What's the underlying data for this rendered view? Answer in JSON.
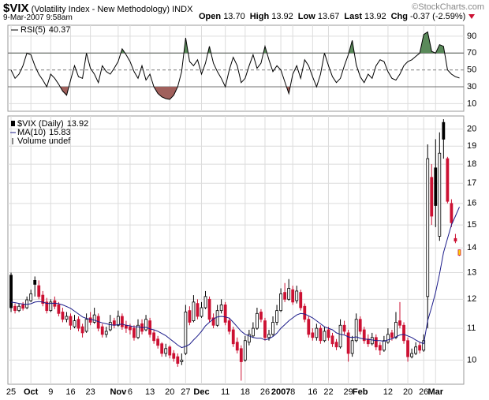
{
  "header": {
    "symbol": "$VIX",
    "name": "(Volatility Index - New Methodology)",
    "exchange": "INDX",
    "timestamp": "9-Mar-2007 9:58am",
    "credit": "©StockCharts.com",
    "quote": [
      {
        "label": "Open",
        "value": "13.70"
      },
      {
        "label": "High",
        "value": "13.92"
      },
      {
        "label": "Low",
        "value": "13.67"
      },
      {
        "label": "Last",
        "value": "13.92"
      },
      {
        "label": "Chg",
        "value": "-0.37 (-2.59%)"
      }
    ]
  },
  "chart_data": [
    {
      "type": "line",
      "ylim": [
        1,
        103
      ],
      "yticks": [
        10,
        30,
        50,
        70,
        90
      ],
      "grid": true,
      "overbought": 70,
      "oversold": 30,
      "midline": 50,
      "overbought_color": "#5a8a5a",
      "oversold_color": "#a0605c",
      "series": [
        {
          "name": "RSI(5)",
          "color": "#000000",
          "values": [
            50,
            40,
            45,
            55,
            70,
            68,
            55,
            45,
            38,
            30,
            45,
            40,
            33,
            25,
            20,
            38,
            55,
            42,
            40,
            70,
            52,
            45,
            35,
            55,
            48,
            45,
            52,
            60,
            75,
            68,
            60,
            48,
            40,
            55,
            38,
            45,
            30,
            22,
            18,
            16,
            15,
            20,
            30,
            48,
            88,
            60,
            55,
            62,
            45,
            58,
            78,
            58,
            48,
            40,
            30,
            50,
            65,
            55,
            35,
            40,
            55,
            68,
            52,
            58,
            78,
            62,
            48,
            55,
            50,
            36,
            22,
            45,
            55,
            40,
            62,
            55,
            42,
            30,
            45,
            70,
            55,
            42,
            35,
            40,
            55,
            68,
            85,
            56,
            42,
            35,
            45,
            40,
            55,
            62,
            60,
            48,
            40,
            38,
            45,
            55,
            60,
            62,
            66,
            70,
            92,
            95,
            72,
            70,
            80,
            78,
            50,
            45,
            42,
            40.37
          ]
        }
      ]
    },
    {
      "type": "candlestick",
      "name": "$VIX (Daily)",
      "log_scale": true,
      "grid": true,
      "up_color": "#000000",
      "down_color": "#cc1133",
      "last_color": "#ffd700",
      "ylim": [
        9.3,
        20.8
      ],
      "yticks": [
        10,
        11,
        12,
        13,
        14,
        15,
        16,
        17,
        18,
        19,
        20
      ],
      "xlim": [
        -0.8,
        114.1
      ],
      "xticks": [
        {
          "value": 0,
          "label": "25"
        },
        {
          "value": 5,
          "label": "Oct"
        },
        {
          "value": 10,
          "label": "9"
        },
        {
          "value": 15,
          "label": "16"
        },
        {
          "value": 20,
          "label": "23"
        },
        {
          "value": 27,
          "label": "Nov"
        },
        {
          "value": 30,
          "label": "6"
        },
        {
          "value": 35,
          "label": "13"
        },
        {
          "value": 40,
          "label": "20"
        },
        {
          "value": 44,
          "label": "27"
        },
        {
          "value": 48,
          "label": "Dec"
        },
        {
          "value": 54,
          "label": "11"
        },
        {
          "value": 59,
          "label": "18"
        },
        {
          "value": 64,
          "label": "26"
        },
        {
          "value": 68,
          "label": "2007"
        },
        {
          "value": 71,
          "label": "8"
        },
        {
          "value": 76,
          "label": "16"
        },
        {
          "value": 80,
          "label": "22"
        },
        {
          "value": 85,
          "label": "29"
        },
        {
          "value": 88,
          "label": "Feb"
        },
        {
          "value": 95,
          "label": "12"
        },
        {
          "value": 100,
          "label": "20"
        },
        {
          "value": 104,
          "label": "26"
        },
        {
          "value": 107,
          "label": "Mar"
        }
      ],
      "open": [
        12.9,
        11.75,
        11.6,
        11.8,
        11.7,
        11.95,
        12.7,
        12.5,
        12.15,
        11.9,
        11.6,
        11.95,
        11.8,
        11.55,
        11.3,
        11.4,
        11.05,
        11.3,
        11.05,
        10.9,
        11.35,
        11.2,
        11.4,
        11.05,
        10.8,
        10.95,
        11.25,
        11.1,
        11.4,
        11.1,
        11.05,
        11.0,
        10.7,
        11.15,
        10.95,
        11.25,
        10.85,
        10.65,
        10.5,
        10.2,
        10.4,
        10.2,
        10.1,
        9.95,
        10.2,
        11.6,
        11.25,
        11.85,
        11.4,
        11.7,
        12.0,
        11.35,
        11.1,
        11.6,
        11.8,
        11.25,
        10.95,
        10.55,
        10.35,
        10.0,
        10.55,
        10.75,
        11.0,
        11.55,
        11.25,
        10.7,
        10.8,
        11.2,
        11.6,
        12.25,
        12.0,
        12.35,
        11.95,
        12.25,
        11.75,
        11.3,
        10.85,
        10.7,
        11.0,
        10.6,
        10.95,
        10.75,
        10.55,
        10.4,
        11.1,
        10.85,
        10.2,
        10.6,
        11.3,
        10.95,
        10.65,
        10.5,
        10.7,
        10.45,
        10.3,
        10.55,
        10.85,
        10.7,
        11.25,
        11.1,
        10.6,
        10.1,
        10.2,
        10.45,
        10.3,
        12.1,
        17.3,
        17.8,
        14.5,
        20.4,
        18.3,
        16.0,
        14.4,
        13.7
      ],
      "high": [
        13.0,
        11.85,
        11.85,
        11.9,
        12.1,
        12.35,
        12.85,
        12.7,
        12.3,
        12.05,
        12.0,
        12.1,
        11.9,
        11.7,
        11.55,
        11.5,
        11.45,
        11.4,
        11.15,
        11.5,
        11.55,
        11.7,
        11.5,
        11.15,
        11.05,
        11.45,
        11.35,
        11.6,
        11.5,
        11.25,
        11.15,
        11.1,
        11.3,
        11.3,
        11.45,
        11.35,
        10.95,
        10.75,
        10.55,
        10.5,
        10.45,
        10.3,
        10.2,
        10.2,
        11.8,
        11.75,
        12.15,
        12.0,
        11.9,
        12.3,
        12.1,
        11.5,
        11.8,
        12.0,
        11.9,
        11.35,
        11.05,
        10.7,
        10.45,
        10.75,
        10.95,
        11.2,
        11.7,
        11.65,
        11.35,
        10.95,
        11.4,
        11.8,
        12.4,
        12.6,
        12.75,
        12.5,
        12.5,
        12.35,
        11.85,
        11.4,
        11.0,
        11.15,
        11.1,
        11.05,
        11.05,
        10.85,
        10.65,
        11.3,
        11.25,
        10.95,
        10.75,
        11.5,
        11.4,
        11.05,
        10.8,
        10.85,
        10.8,
        10.55,
        10.75,
        11.0,
        10.95,
        11.55,
        11.9,
        11.2,
        10.7,
        10.35,
        10.55,
        10.55,
        10.8,
        19.1,
        18.0,
        19.4,
        19.8,
        20.6,
        18.4,
        16.2,
        14.6,
        13.92
      ],
      "low": [
        11.55,
        11.5,
        11.55,
        11.6,
        11.65,
        11.9,
        12.1,
        12.0,
        11.75,
        11.5,
        11.55,
        11.65,
        11.4,
        11.2,
        11.2,
        10.95,
        11.0,
        10.9,
        10.7,
        10.85,
        11.1,
        11.15,
        10.9,
        10.7,
        10.7,
        10.9,
        11.0,
        11.05,
        10.95,
        10.85,
        10.8,
        10.6,
        10.65,
        10.8,
        10.9,
        10.7,
        10.5,
        10.35,
        10.1,
        10.1,
        10.05,
        9.95,
        9.8,
        9.85,
        10.15,
        11.1,
        11.2,
        11.3,
        11.35,
        11.65,
        11.2,
        11.0,
        11.05,
        11.5,
        11.1,
        10.8,
        10.4,
        10.2,
        9.4,
        9.95,
        10.45,
        10.7,
        10.95,
        11.2,
        10.6,
        10.6,
        10.75,
        11.1,
        11.55,
        11.9,
        11.95,
        11.8,
        11.85,
        11.6,
        11.2,
        10.7,
        10.6,
        10.6,
        10.5,
        10.55,
        10.6,
        10.4,
        10.3,
        10.35,
        10.8,
        9.95,
        10.1,
        10.55,
        10.8,
        10.5,
        10.4,
        10.45,
        10.3,
        10.15,
        10.25,
        10.5,
        10.6,
        10.65,
        11.0,
        10.5,
        9.95,
        10.05,
        10.15,
        10.2,
        10.25,
        11.0,
        15.0,
        14.9,
        14.3,
        18.3,
        16.0,
        14.9,
        14.2,
        13.67
      ],
      "close": [
        11.7,
        11.6,
        11.75,
        11.68,
        11.98,
        12.2,
        12.55,
        12.1,
        11.85,
        11.6,
        11.9,
        11.75,
        11.5,
        11.3,
        11.4,
        11.1,
        11.25,
        11.0,
        10.85,
        11.3,
        11.2,
        11.45,
        11.0,
        10.8,
        10.9,
        11.2,
        11.1,
        11.4,
        11.05,
        11.0,
        10.95,
        10.7,
        11.1,
        10.9,
        11.3,
        10.8,
        10.6,
        10.45,
        10.2,
        10.35,
        10.15,
        10.05,
        9.9,
        10.0,
        11.55,
        11.2,
        11.9,
        11.4,
        11.7,
        12.1,
        11.3,
        11.1,
        11.6,
        11.8,
        11.2,
        10.9,
        10.5,
        10.3,
        9.95,
        10.6,
        10.8,
        11.0,
        11.5,
        11.3,
        10.7,
        10.8,
        11.2,
        11.6,
        12.2,
        12.0,
        12.4,
        11.9,
        12.3,
        11.7,
        11.3,
        10.8,
        10.7,
        11.0,
        10.6,
        10.9,
        10.7,
        10.5,
        10.4,
        11.1,
        10.9,
        10.2,
        10.6,
        11.3,
        10.9,
        10.6,
        10.5,
        10.7,
        10.4,
        10.3,
        10.6,
        10.8,
        10.7,
        11.2,
        11.1,
        10.6,
        10.1,
        10.2,
        10.4,
        10.3,
        10.6,
        18.3,
        15.4,
        15.9,
        18.6,
        19.4,
        16.1,
        15.1,
        14.29,
        13.92
      ],
      "overlay": {
        "name": "MA(10)",
        "color": "#1c1c8a",
        "values": [
          11.9,
          11.88,
          11.85,
          11.83,
          11.82,
          11.84,
          11.9,
          11.92,
          11.9,
          11.85,
          11.85,
          11.86,
          11.84,
          11.8,
          11.74,
          11.68,
          11.58,
          11.48,
          11.38,
          11.33,
          11.3,
          11.27,
          11.22,
          11.18,
          11.15,
          11.12,
          11.1,
          11.12,
          11.14,
          11.1,
          11.08,
          11.05,
          11.05,
          11.02,
          11.03,
          10.98,
          10.95,
          10.9,
          10.83,
          10.76,
          10.66,
          10.56,
          10.46,
          10.38,
          10.42,
          10.48,
          10.62,
          10.75,
          10.9,
          11.08,
          11.2,
          11.31,
          11.38,
          11.4,
          11.38,
          11.34,
          11.2,
          11.05,
          10.9,
          10.8,
          10.75,
          10.7,
          10.68,
          10.68,
          10.62,
          10.66,
          10.73,
          10.84,
          11.0,
          11.12,
          11.25,
          11.35,
          11.45,
          11.5,
          11.48,
          11.42,
          11.35,
          11.25,
          11.15,
          11.05,
          11.0,
          10.95,
          10.85,
          10.8,
          10.78,
          10.72,
          10.7,
          10.72,
          10.68,
          10.65,
          10.64,
          10.62,
          10.6,
          10.6,
          10.58,
          10.62,
          10.66,
          10.72,
          10.78,
          10.8,
          10.75,
          10.7,
          10.62,
          10.55,
          10.5,
          11.25,
          11.72,
          12.25,
          12.95,
          13.8,
          14.4,
          15.0,
          15.4,
          15.83
        ]
      },
      "volume_label": "Volume undef"
    }
  ]
}
